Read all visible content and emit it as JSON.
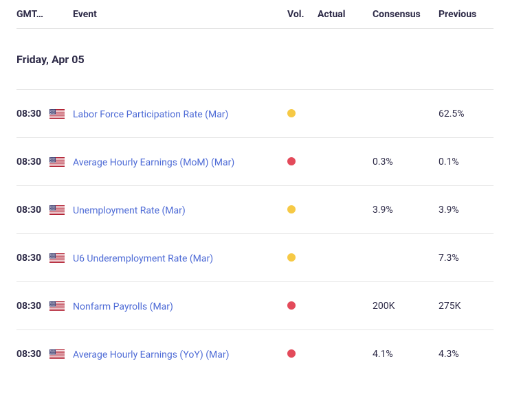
{
  "colors": {
    "text": "#2d2a47",
    "link": "#4e6bd6",
    "border": "#e5e5e5",
    "vol_low": "#f6c945",
    "vol_high": "#e34a5a"
  },
  "header": {
    "time_col": "GMT…",
    "event_col": "Event",
    "vol_col": "Vol.",
    "actual_col": "Actual",
    "consensus_col": "Consensus",
    "previous_col": "Previous"
  },
  "day_label": "Friday, Apr 05",
  "rows": [
    {
      "time": "08:30",
      "country": "us",
      "event": "Labor Force Participation Rate (Mar)",
      "vol": "low",
      "actual": "",
      "consensus": "",
      "previous": "62.5%"
    },
    {
      "time": "08:30",
      "country": "us",
      "event": "Average Hourly Earnings (MoM) (Mar)",
      "vol": "high",
      "actual": "",
      "consensus": "0.3%",
      "previous": "0.1%"
    },
    {
      "time": "08:30",
      "country": "us",
      "event": "Unemployment Rate (Mar)",
      "vol": "low",
      "actual": "",
      "consensus": "3.9%",
      "previous": "3.9%"
    },
    {
      "time": "08:30",
      "country": "us",
      "event": "U6 Underemployment Rate (Mar)",
      "vol": "low",
      "actual": "",
      "consensus": "",
      "previous": "7.3%"
    },
    {
      "time": "08:30",
      "country": "us",
      "event": "Nonfarm Payrolls (Mar)",
      "vol": "high",
      "actual": "",
      "consensus": "200K",
      "previous": "275K"
    },
    {
      "time": "08:30",
      "country": "us",
      "event": "Average Hourly Earnings (YoY) (Mar)",
      "vol": "high",
      "actual": "",
      "consensus": "4.1%",
      "previous": "4.3%"
    }
  ]
}
